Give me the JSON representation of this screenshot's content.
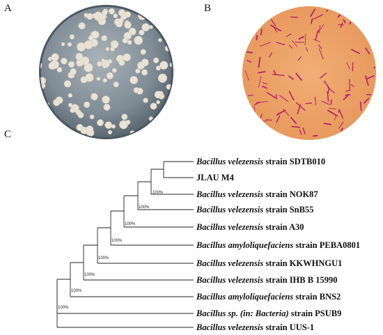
{
  "panel_labels": {
    "a": "A",
    "b": "B",
    "c": "C"
  },
  "plate_a": {
    "description_icon": "bacterial-colony-plate-icon",
    "agar_color": "#8e9aa3",
    "colony_color": "#e9e3d6"
  },
  "plate_b": {
    "description_icon": "gram-stain-micrograph-icon",
    "bg_color": "#eca46a",
    "cell_color": "#b4206e"
  },
  "tree": {
    "taxa": [
      {
        "genus": "Bacillus velezensis",
        "rest": " strain SDTB010"
      },
      {
        "genus": "",
        "rest": "JLAU M4"
      },
      {
        "genus": "Bacillus velezensis",
        "rest": " strain NOK87"
      },
      {
        "genus": "Bacillus velezensis",
        "rest": " strain SnB55"
      },
      {
        "genus": "Bacillus velezensis",
        "rest": " strain A30"
      },
      {
        "genus": "Bacillus amyloliquefaciens",
        "rest": " strain PEBA0801"
      },
      {
        "genus": "Bacillus velezensis",
        "rest": " strain KKWHNGU1"
      },
      {
        "genus": "Bacillus velezensis",
        "rest": " strain IHB B 15990"
      },
      {
        "genus": "Bacillus amyloliquefaciens",
        "rest": " strain BNS2"
      },
      {
        "genus": "Bacillus sp. (in: Bacteria)",
        "rest": " strain PSUB9"
      },
      {
        "genus": "Bacillus velezensis",
        "rest": " strain UUS-1"
      }
    ],
    "bootstrap_label": "100%"
  }
}
